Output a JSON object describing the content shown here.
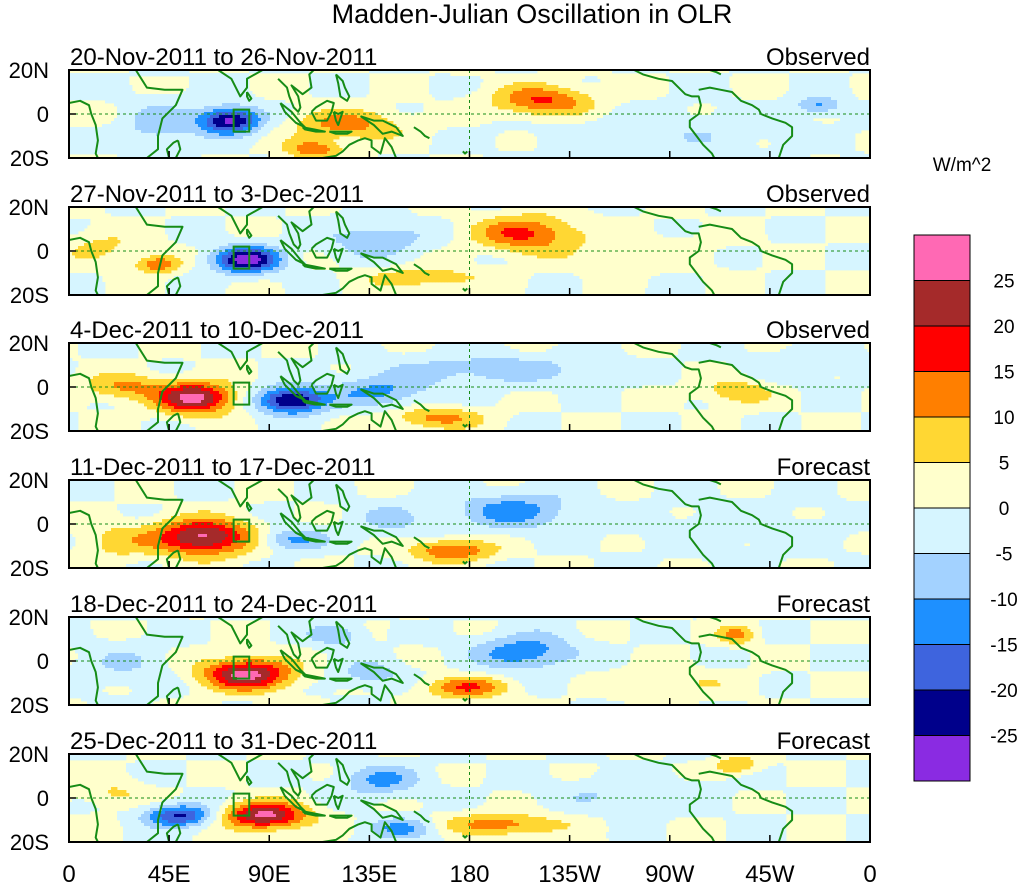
{
  "chart_data": {
    "type": "heatmap",
    "title": "Madden-Julian Oscillation in OLR",
    "units_label": "W/m^2",
    "x_ticks": [
      "0",
      "45E",
      "90E",
      "135E",
      "180",
      "135W",
      "90W",
      "45W",
      "0"
    ],
    "y_ticks": [
      "20N",
      "0",
      "20S"
    ],
    "lon_range": [
      0,
      360
    ],
    "lat_range": [
      -20,
      20
    ],
    "legend": {
      "position": "right",
      "boundaries": [
        "25",
        "20",
        "15",
        "10",
        "5",
        "0",
        "-5",
        "-10",
        "-15",
        "-20",
        "-25"
      ],
      "colors": [
        "#ff69b4",
        "#a52a2a",
        "#ff0000",
        "#ff7f00",
        "#ffd733",
        "#ffffcc",
        "#d6f5ff",
        "#a3d2ff",
        "#1e90ff",
        "#3e64de",
        "#00008b",
        "#8a2be2"
      ]
    },
    "panels": [
      {
        "period": "20-Nov-2011 to 26-Nov-2011",
        "status": "Observed",
        "anomalies": [
          {
            "lon": 72,
            "lat": -3,
            "value": -27,
            "rlon": 14,
            "rlat": 6
          },
          {
            "lon": 125,
            "lat": -5,
            "value": 12,
            "rlon": 25,
            "rlat": 7
          },
          {
            "lon": 110,
            "lat": -16,
            "value": 14,
            "rlon": 12,
            "rlat": 4
          },
          {
            "lon": 213,
            "lat": 6,
            "value": 16,
            "rlon": 22,
            "rlat": 7
          },
          {
            "lon": 337,
            "lat": 4,
            "value": -11,
            "rlon": 10,
            "rlat": 4
          },
          {
            "lon": 270,
            "lat": -8,
            "value": -4,
            "rlon": 60,
            "rlat": 10
          },
          {
            "lon": 40,
            "lat": -5,
            "value": -8,
            "rlon": 15,
            "rlat": 10
          }
        ]
      },
      {
        "period": "27-Nov-2011 to 3-Dec-2011",
        "status": "Observed",
        "anomalies": [
          {
            "lon": 80,
            "lat": -4,
            "value": -27,
            "rlon": 15,
            "rlat": 6
          },
          {
            "lon": 40,
            "lat": -6,
            "value": 14,
            "rlon": 10,
            "rlat": 4
          },
          {
            "lon": 205,
            "lat": 8,
            "value": 16,
            "rlon": 22,
            "rlat": 8
          },
          {
            "lon": 138,
            "lat": 5,
            "value": -9,
            "rlon": 22,
            "rlat": 8
          },
          {
            "lon": 160,
            "lat": -12,
            "value": 9,
            "rlon": 25,
            "rlat": 5
          },
          {
            "lon": 15,
            "lat": 2,
            "value": 6,
            "rlon": 18,
            "rlat": 8
          },
          {
            "lon": 250,
            "lat": 0,
            "value": 3,
            "rlon": 40,
            "rlat": 10
          }
        ]
      },
      {
        "period": "4-Dec-2011 to 10-Dec-2011",
        "status": "Observed",
        "anomalies": [
          {
            "lon": 57,
            "lat": -5,
            "value": 27,
            "rlon": 17,
            "rlat": 7
          },
          {
            "lon": 100,
            "lat": -6,
            "value": -27,
            "rlon": 15,
            "rlat": 6
          },
          {
            "lon": 25,
            "lat": 0,
            "value": 11,
            "rlon": 18,
            "rlat": 6
          },
          {
            "lon": 140,
            "lat": -2,
            "value": -11,
            "rlon": 22,
            "rlat": 7
          },
          {
            "lon": 190,
            "lat": 8,
            "value": -8,
            "rlon": 45,
            "rlat": 7
          },
          {
            "lon": 165,
            "lat": -14,
            "value": 12,
            "rlon": 20,
            "rlat": 5
          },
          {
            "lon": 300,
            "lat": -2,
            "value": 9,
            "rlon": 16,
            "rlat": 6
          },
          {
            "lon": 330,
            "lat": 10,
            "value": -4,
            "rlon": 25,
            "rlat": 8
          }
        ]
      },
      {
        "period": "11-Dec-2011 to 17-Dec-2011",
        "status": "Forecast",
        "anomalies": [
          {
            "lon": 60,
            "lat": -6,
            "value": 27,
            "rlon": 22,
            "rlat": 8
          },
          {
            "lon": 100,
            "lat": -7,
            "value": -12,
            "rlon": 15,
            "rlat": 5
          },
          {
            "lon": 200,
            "lat": 6,
            "value": -13,
            "rlon": 25,
            "rlat": 8
          },
          {
            "lon": 172,
            "lat": -12,
            "value": 16,
            "rlon": 18,
            "rlat": 5
          },
          {
            "lon": 145,
            "lat": 2,
            "value": -6,
            "rlon": 18,
            "rlat": 8
          },
          {
            "lon": 20,
            "lat": -8,
            "value": 7,
            "rlon": 15,
            "rlat": 8
          },
          {
            "lon": 300,
            "lat": -2,
            "value": -3,
            "rlon": 50,
            "rlat": 12
          }
        ]
      },
      {
        "period": "18-Dec-2011 to 24-Dec-2011",
        "status": "Forecast",
        "anomalies": [
          {
            "lon": 80,
            "lat": -6,
            "value": 27,
            "rlon": 20,
            "rlat": 7
          },
          {
            "lon": 205,
            "lat": 4,
            "value": -14,
            "rlon": 22,
            "rlat": 8
          },
          {
            "lon": 178,
            "lat": -12,
            "value": 15,
            "rlon": 18,
            "rlat": 5
          },
          {
            "lon": 120,
            "lat": 12,
            "value": -10,
            "rlon": 12,
            "rlat": 5
          },
          {
            "lon": 135,
            "lat": -6,
            "value": -8,
            "rlon": 15,
            "rlat": 6
          },
          {
            "lon": 300,
            "lat": 12,
            "value": 12,
            "rlon": 8,
            "rlat": 4
          },
          {
            "lon": 25,
            "lat": -2,
            "value": -5,
            "rlon": 20,
            "rlat": 10
          },
          {
            "lon": 270,
            "lat": -10,
            "value": 5,
            "rlon": 30,
            "rlat": 6
          }
        ]
      },
      {
        "period": "25-Dec-2011 to 31-Dec-2011",
        "status": "Forecast",
        "anomalies": [
          {
            "lon": 88,
            "lat": -8,
            "value": 27,
            "rlon": 18,
            "rlat": 6
          },
          {
            "lon": 50,
            "lat": -8,
            "value": -21,
            "rlon": 15,
            "rlat": 5
          },
          {
            "lon": 140,
            "lat": 8,
            "value": -11,
            "rlon": 18,
            "rlat": 7
          },
          {
            "lon": 195,
            "lat": -12,
            "value": 13,
            "rlon": 25,
            "rlat": 5
          },
          {
            "lon": 150,
            "lat": -14,
            "value": -11,
            "rlon": 15,
            "rlat": 5
          },
          {
            "lon": 300,
            "lat": 15,
            "value": 10,
            "rlon": 10,
            "rlat": 4
          },
          {
            "lon": 250,
            "lat": 2,
            "value": -5,
            "rlon": 35,
            "rlat": 8
          },
          {
            "lon": 20,
            "lat": 2,
            "value": 6,
            "rlon": 14,
            "rlat": 6
          }
        ]
      }
    ]
  }
}
